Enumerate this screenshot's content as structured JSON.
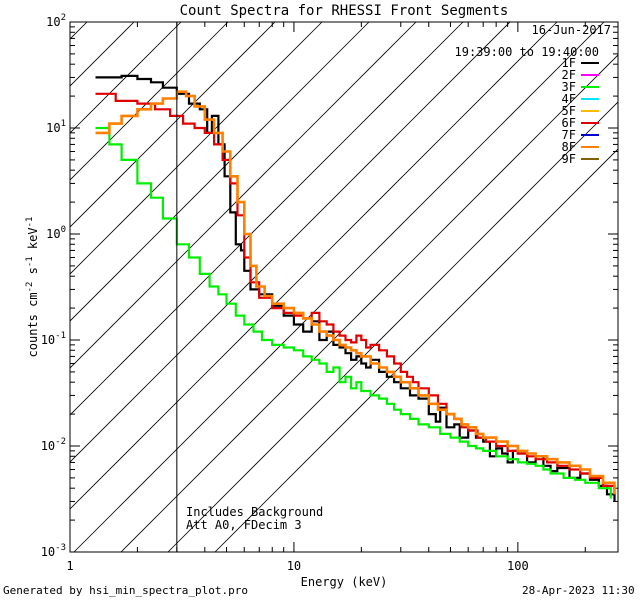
{
  "chart_data": {
    "type": "line",
    "title": "Count Spectra for RHESSI Front Segments",
    "xlabel": "Energy (keV)",
    "ylabel_parts": [
      "counts cm",
      "-2",
      " s",
      "-1",
      " keV",
      "-1"
    ],
    "xscale": "log",
    "yscale": "log",
    "xlim": [
      1,
      280
    ],
    "ylim": [
      0.001,
      100
    ],
    "x_tick_labels": [
      {
        "value": 1,
        "label": "1"
      },
      {
        "value": 10,
        "label": "10"
      },
      {
        "value": 100,
        "label": "100"
      }
    ],
    "y_tick_labels": [
      {
        "value": 100,
        "base": "10",
        "exp": "2"
      },
      {
        "value": 10,
        "base": "10",
        "exp": "1"
      },
      {
        "value": 1,
        "base": "10",
        "exp": "0"
      },
      {
        "value": 0.1,
        "base": "10",
        "exp": "-1"
      },
      {
        "value": 0.01,
        "base": "10",
        "exp": "-2"
      },
      {
        "value": 0.001,
        "base": "10",
        "exp": "-3"
      }
    ],
    "date": "16-Jun-2017",
    "time_range": "19:39:00 to 19:40:00",
    "excluded_region": {
      "xmin": 1,
      "xmax": 3
    },
    "annotations": [
      "Includes Background",
      "Att A0, FDecim 3"
    ],
    "legend": [
      {
        "name": "1F",
        "color": "#000000"
      },
      {
        "name": "2F",
        "color": "#ff00ff"
      },
      {
        "name": "3F",
        "color": "#00ee00"
      },
      {
        "name": "4F",
        "color": "#00e5ff"
      },
      {
        "name": "5F",
        "color": "#ffbb00"
      },
      {
        "name": "6F",
        "color": "#e00000"
      },
      {
        "name": "7F",
        "color": "#0000cc"
      },
      {
        "name": "8F",
        "color": "#ff8000"
      },
      {
        "name": "9F",
        "color": "#806000"
      }
    ],
    "series": [
      {
        "name": "1F",
        "color": "#000000",
        "width": 2.2,
        "step": true,
        "points": [
          [
            1.3,
            30
          ],
          [
            1.7,
            31
          ],
          [
            2,
            29
          ],
          [
            2.3,
            27
          ],
          [
            2.6,
            24
          ],
          [
            3,
            21
          ],
          [
            3.4,
            17
          ],
          [
            3.8,
            15
          ],
          [
            4.1,
            9
          ],
          [
            4.3,
            13
          ],
          [
            4.6,
            7
          ],
          [
            4.9,
            3.5
          ],
          [
            5.2,
            1.6
          ],
          [
            5.5,
            0.8
          ],
          [
            5.8,
            0.7
          ],
          [
            6,
            0.45
          ],
          [
            6.4,
            0.3
          ],
          [
            7,
            0.27
          ],
          [
            8,
            0.21
          ],
          [
            9,
            0.17
          ],
          [
            10,
            0.14
          ],
          [
            11,
            0.12
          ],
          [
            12,
            0.15
          ],
          [
            13,
            0.1
          ],
          [
            14,
            0.12
          ],
          [
            15,
            0.09
          ],
          [
            16,
            0.085
          ],
          [
            17,
            0.075
          ],
          [
            18,
            0.065
          ],
          [
            19,
            0.07
          ],
          [
            20,
            0.06
          ],
          [
            21,
            0.055
          ],
          [
            22,
            0.065
          ],
          [
            24,
            0.05
          ],
          [
            26,
            0.045
          ],
          [
            28,
            0.04
          ],
          [
            30,
            0.035
          ],
          [
            33,
            0.03
          ],
          [
            36,
            0.028
          ],
          [
            40,
            0.02
          ],
          [
            43,
            0.017
          ],
          [
            45,
            0.023
          ],
          [
            48,
            0.015
          ],
          [
            52,
            0.016
          ],
          [
            55,
            0.012
          ],
          [
            60,
            0.014
          ],
          [
            65,
            0.012
          ],
          [
            70,
            0.011
          ],
          [
            75,
            0.008
          ],
          [
            80,
            0.0095
          ],
          [
            85,
            0.0085
          ],
          [
            90,
            0.007
          ],
          [
            95,
            0.009
          ],
          [
            100,
            0.0085
          ],
          [
            110,
            0.007
          ],
          [
            120,
            0.008
          ],
          [
            130,
            0.0065
          ],
          [
            140,
            0.0058
          ],
          [
            150,
            0.0062
          ],
          [
            170,
            0.005
          ],
          [
            190,
            0.0055
          ],
          [
            210,
            0.0048
          ],
          [
            230,
            0.0042
          ],
          [
            250,
            0.0035
          ],
          [
            270,
            0.003
          ]
        ]
      },
      {
        "name": "3F",
        "color": "#00ee00",
        "width": 2.2,
        "step": true,
        "points": [
          [
            1.3,
            10
          ],
          [
            1.5,
            7
          ],
          [
            1.7,
            5
          ],
          [
            2,
            3
          ],
          [
            2.3,
            2.2
          ],
          [
            2.6,
            1.4
          ],
          [
            3,
            0.8
          ],
          [
            3.4,
            0.6
          ],
          [
            3.8,
            0.42
          ],
          [
            4.2,
            0.32
          ],
          [
            4.6,
            0.27
          ],
          [
            5,
            0.22
          ],
          [
            5.5,
            0.17
          ],
          [
            6,
            0.14
          ],
          [
            6.6,
            0.12
          ],
          [
            7.2,
            0.1
          ],
          [
            8,
            0.09
          ],
          [
            9,
            0.085
          ],
          [
            10,
            0.08
          ],
          [
            11,
            0.07
          ],
          [
            12,
            0.065
          ],
          [
            13,
            0.06
          ],
          [
            14,
            0.05
          ],
          [
            15,
            0.055
          ],
          [
            16,
            0.04
          ],
          [
            17,
            0.045
          ],
          [
            18,
            0.035
          ],
          [
            19,
            0.04
          ],
          [
            20,
            0.033
          ],
          [
            22,
            0.03
          ],
          [
            24,
            0.028
          ],
          [
            26,
            0.025
          ],
          [
            28,
            0.022
          ],
          [
            30,
            0.02
          ],
          [
            33,
            0.018
          ],
          [
            36,
            0.016
          ],
          [
            40,
            0.015
          ],
          [
            45,
            0.013
          ],
          [
            50,
            0.012
          ],
          [
            55,
            0.011
          ],
          [
            60,
            0.01
          ],
          [
            65,
            0.0095
          ],
          [
            70,
            0.009
          ],
          [
            80,
            0.008
          ],
          [
            90,
            0.0075
          ],
          [
            100,
            0.007
          ],
          [
            110,
            0.0068
          ],
          [
            120,
            0.0065
          ],
          [
            130,
            0.006
          ],
          [
            140,
            0.0055
          ],
          [
            160,
            0.005
          ],
          [
            180,
            0.0048
          ],
          [
            200,
            0.0045
          ],
          [
            230,
            0.004
          ],
          [
            260,
            0.0032
          ]
        ]
      },
      {
        "name": "6F",
        "color": "#e00000",
        "width": 2.2,
        "step": true,
        "points": [
          [
            1.3,
            21
          ],
          [
            1.6,
            18
          ],
          [
            2,
            17
          ],
          [
            2.4,
            15
          ],
          [
            2.8,
            13
          ],
          [
            3.2,
            11
          ],
          [
            3.6,
            10
          ],
          [
            4,
            9
          ],
          [
            4.4,
            7
          ],
          [
            4.8,
            5
          ],
          [
            5.2,
            3
          ],
          [
            5.6,
            1.5
          ],
          [
            6,
            0.6
          ],
          [
            6.4,
            0.35
          ],
          [
            7,
            0.25
          ],
          [
            8,
            0.2
          ],
          [
            9,
            0.18
          ],
          [
            10,
            0.17
          ],
          [
            11,
            0.16
          ],
          [
            12,
            0.18
          ],
          [
            13,
            0.15
          ],
          [
            14,
            0.14
          ],
          [
            15,
            0.12
          ],
          [
            16,
            0.11
          ],
          [
            17,
            0.1
          ],
          [
            18,
            0.095
          ],
          [
            19,
            0.11
          ],
          [
            20,
            0.1
          ],
          [
            21,
            0.085
          ],
          [
            22,
            0.09
          ],
          [
            24,
            0.08
          ],
          [
            26,
            0.07
          ],
          [
            28,
            0.06
          ],
          [
            30,
            0.05
          ],
          [
            32,
            0.045
          ],
          [
            34,
            0.04
          ],
          [
            36,
            0.035
          ],
          [
            40,
            0.03
          ],
          [
            44,
            0.025
          ],
          [
            48,
            0.02
          ],
          [
            52,
            0.018
          ],
          [
            56,
            0.015
          ],
          [
            60,
            0.014
          ],
          [
            66,
            0.012
          ],
          [
            72,
            0.011
          ],
          [
            80,
            0.01
          ],
          [
            90,
            0.009
          ],
          [
            100,
            0.0085
          ],
          [
            110,
            0.008
          ],
          [
            120,
            0.0075
          ],
          [
            135,
            0.007
          ],
          [
            150,
            0.0065
          ],
          [
            170,
            0.006
          ],
          [
            190,
            0.0055
          ],
          [
            210,
            0.005
          ],
          [
            240,
            0.0042
          ],
          [
            270,
            0.0035
          ]
        ]
      },
      {
        "name": "8F",
        "color": "#ff8000",
        "width": 2.6,
        "step": true,
        "points": [
          [
            1.3,
            9
          ],
          [
            1.5,
            11
          ],
          [
            1.7,
            13
          ],
          [
            2,
            15
          ],
          [
            2.3,
            17
          ],
          [
            2.6,
            19
          ],
          [
            3,
            22
          ],
          [
            3.3,
            20
          ],
          [
            3.6,
            16
          ],
          [
            4,
            12
          ],
          [
            4.4,
            9
          ],
          [
            4.8,
            6
          ],
          [
            5.2,
            3.5
          ],
          [
            5.6,
            2
          ],
          [
            6,
            1
          ],
          [
            6.4,
            0.5
          ],
          [
            6.8,
            0.32
          ],
          [
            7.4,
            0.26
          ],
          [
            8,
            0.22
          ],
          [
            9,
            0.2
          ],
          [
            10,
            0.18
          ],
          [
            11,
            0.16
          ],
          [
            12,
            0.14
          ],
          [
            13,
            0.12
          ],
          [
            14,
            0.11
          ],
          [
            15,
            0.1
          ],
          [
            16,
            0.09
          ],
          [
            17,
            0.085
          ],
          [
            18,
            0.08
          ],
          [
            19,
            0.075
          ],
          [
            20,
            0.07
          ],
          [
            22,
            0.06
          ],
          [
            24,
            0.055
          ],
          [
            26,
            0.05
          ],
          [
            28,
            0.045
          ],
          [
            30,
            0.04
          ],
          [
            33,
            0.035
          ],
          [
            36,
            0.03
          ],
          [
            40,
            0.025
          ],
          [
            44,
            0.022
          ],
          [
            48,
            0.02
          ],
          [
            52,
            0.018
          ],
          [
            56,
            0.016
          ],
          [
            60,
            0.015
          ],
          [
            65,
            0.013
          ],
          [
            70,
            0.012
          ],
          [
            80,
            0.011
          ],
          [
            90,
            0.01
          ],
          [
            100,
            0.009
          ],
          [
            110,
            0.0085
          ],
          [
            120,
            0.008
          ],
          [
            135,
            0.0075
          ],
          [
            150,
            0.007
          ],
          [
            170,
            0.0065
          ],
          [
            190,
            0.006
          ],
          [
            210,
            0.0052
          ],
          [
            240,
            0.0045
          ],
          [
            270,
            0.0035
          ]
        ]
      }
    ]
  },
  "footer": {
    "generated_by": "Generated by hsi_min_spectra_plot.pro",
    "timestamp": "28-Apr-2023 11:30"
  }
}
